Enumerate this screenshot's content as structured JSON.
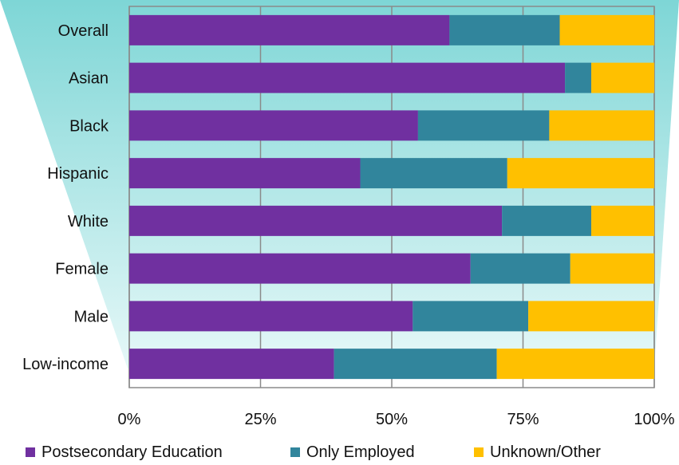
{
  "chart_data": {
    "type": "bar",
    "orientation": "horizontal",
    "stacked": true,
    "title": "",
    "xlabel": "",
    "ylabel": "",
    "xlim": [
      0,
      100
    ],
    "x_ticks": [
      "0%",
      "25%",
      "50%",
      "75%",
      "100%"
    ],
    "grid": true,
    "legend_position": "bottom",
    "categories": [
      "Overall",
      "Asian",
      "Black",
      "Hispanic",
      "White",
      "Female",
      "Male",
      "Low-income"
    ],
    "series": [
      {
        "name": "Postsecondary Education",
        "color": "#7030A0",
        "values": [
          61,
          83,
          55,
          44,
          71,
          65,
          54,
          39
        ]
      },
      {
        "name": "Only Employed",
        "color": "#31859C",
        "values": [
          21,
          5,
          25,
          28,
          17,
          19,
          22,
          31
        ]
      },
      {
        "name": "Unknown/Other",
        "color": "#FFC000",
        "values": [
          18,
          12,
          20,
          28,
          12,
          16,
          24,
          30
        ]
      }
    ]
  },
  "colors": {
    "background_funnel_top": "#7ED6D6",
    "background_funnel_bottom": "#E6F8F8"
  }
}
